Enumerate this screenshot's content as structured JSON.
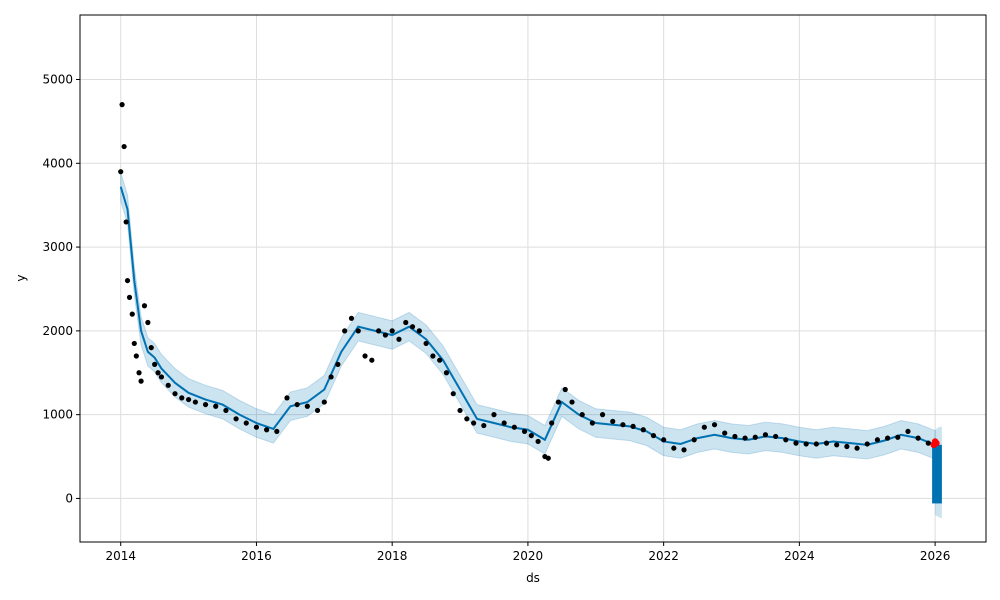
{
  "chart_data": {
    "type": "scatter",
    "title": "",
    "xlabel": "ds",
    "ylabel": "y",
    "xlim": [
      2013.4,
      2026.75
    ],
    "ylim": [
      -520,
      5770
    ],
    "x_ticks": [
      {
        "value": 2014,
        "label": "2014"
      },
      {
        "value": 2016,
        "label": "2016"
      },
      {
        "value": 2018,
        "label": "2018"
      },
      {
        "value": 2020,
        "label": "2020"
      },
      {
        "value": 2022,
        "label": "2022"
      },
      {
        "value": 2024,
        "label": "2024"
      },
      {
        "value": 2026,
        "label": "2026"
      }
    ],
    "y_ticks": [
      {
        "value": 0,
        "label": "0"
      },
      {
        "value": 1000,
        "label": "1000"
      },
      {
        "value": 2000,
        "label": "2000"
      },
      {
        "value": 3000,
        "label": "3000"
      },
      {
        "value": 4000,
        "label": "4000"
      },
      {
        "value": 5000,
        "label": "5000"
      }
    ],
    "grid": true,
    "colors": {
      "observed": "#000000",
      "forecast_line": "#0072B2",
      "uncertainty_band": "#0072B2",
      "recent_points": "#ff0000",
      "grid": "#dddddd"
    },
    "observed": {
      "x": [
        2014.0,
        2014.02,
        2014.05,
        2014.08,
        2014.1,
        2014.13,
        2014.17,
        2014.2,
        2014.23,
        2014.27,
        2014.3,
        2014.35,
        2014.4,
        2014.45,
        2014.5,
        2014.55,
        2014.6,
        2014.7,
        2014.8,
        2014.9,
        2015.0,
        2015.1,
        2015.25,
        2015.4,
        2015.55,
        2015.7,
        2015.85,
        2016.0,
        2016.15,
        2016.3,
        2016.45,
        2016.6,
        2016.75,
        2016.9,
        2017.0,
        2017.1,
        2017.2,
        2017.3,
        2017.4,
        2017.5,
        2017.6,
        2017.7,
        2017.8,
        2017.9,
        2018.0,
        2018.1,
        2018.2,
        2018.3,
        2018.4,
        2018.5,
        2018.6,
        2018.7,
        2018.8,
        2018.9,
        2019.0,
        2019.1,
        2019.2,
        2019.35,
        2019.5,
        2019.65,
        2019.8,
        2019.95,
        2020.05,
        2020.15,
        2020.25,
        2020.3,
        2020.35,
        2020.45,
        2020.55,
        2020.65,
        2020.8,
        2020.95,
        2021.1,
        2021.25,
        2021.4,
        2021.55,
        2021.7,
        2021.85,
        2022.0,
        2022.15,
        2022.3,
        2022.45,
        2022.6,
        2022.75,
        2022.9,
        2023.05,
        2023.2,
        2023.35,
        2023.5,
        2023.65,
        2023.8,
        2023.95,
        2024.1,
        2024.25,
        2024.4,
        2024.55,
        2024.7,
        2024.85,
        2025.0,
        2025.15,
        2025.3,
        2025.45,
        2025.6,
        2025.75,
        2025.9
      ],
      "y": [
        3900,
        4700,
        4200,
        3300,
        2600,
        2400,
        2200,
        1850,
        1700,
        1500,
        1400,
        2300,
        2100,
        1800,
        1600,
        1500,
        1450,
        1350,
        1250,
        1200,
        1180,
        1150,
        1120,
        1100,
        1050,
        950,
        900,
        850,
        820,
        800,
        1200,
        1120,
        1100,
        1050,
        1150,
        1450,
        1600,
        2000,
        2150,
        2000,
        1700,
        1650,
        2000,
        1950,
        2000,
        1900,
        2100,
        2050,
        2000,
        1850,
        1700,
        1650,
        1500,
        1250,
        1050,
        950,
        900,
        870,
        1000,
        900,
        850,
        800,
        750,
        680,
        500,
        480,
        900,
        1150,
        1300,
        1150,
        1000,
        900,
        1000,
        920,
        880,
        860,
        820,
        750,
        700,
        600,
        580,
        700,
        850,
        880,
        780,
        740,
        720,
        730,
        760,
        740,
        700,
        660,
        650,
        650,
        660,
        640,
        620,
        600,
        650,
        700,
        720,
        730,
        800,
        720,
        660
      ]
    },
    "forecast": {
      "x": [
        2014.0,
        2014.1,
        2014.2,
        2014.3,
        2014.4,
        2014.5,
        2014.6,
        2014.8,
        2015.0,
        2015.25,
        2015.5,
        2015.75,
        2016.0,
        2016.25,
        2016.5,
        2016.75,
        2017.0,
        2017.25,
        2017.5,
        2017.75,
        2018.0,
        2018.25,
        2018.5,
        2018.75,
        2019.0,
        2019.25,
        2019.5,
        2019.75,
        2020.0,
        2020.25,
        2020.5,
        2020.75,
        2021.0,
        2021.25,
        2021.5,
        2021.75,
        2022.0,
        2022.25,
        2022.5,
        2022.75,
        2023.0,
        2023.25,
        2023.5,
        2023.75,
        2024.0,
        2024.25,
        2024.5,
        2024.75,
        2025.0,
        2025.25,
        2025.5,
        2025.75,
        2026.0
      ],
      "yhat": [
        3720,
        3450,
        2600,
        2000,
        1750,
        1680,
        1550,
        1380,
        1260,
        1180,
        1120,
        1000,
        900,
        830,
        1100,
        1150,
        1300,
        1750,
        2050,
        2000,
        1950,
        2050,
        1900,
        1650,
        1300,
        950,
        900,
        850,
        820,
        700,
        1150,
        1000,
        900,
        880,
        860,
        800,
        680,
        650,
        720,
        760,
        720,
        700,
        740,
        720,
        680,
        650,
        680,
        660,
        640,
        690,
        760,
        720,
        640
      ],
      "lower": [
        3550,
        3280,
        2430,
        1830,
        1580,
        1510,
        1380,
        1210,
        1090,
        1010,
        950,
        830,
        730,
        660,
        930,
        980,
        1130,
        1580,
        1880,
        1830,
        1780,
        1880,
        1730,
        1480,
        1130,
        780,
        730,
        680,
        650,
        530,
        980,
        830,
        730,
        710,
        690,
        630,
        510,
        480,
        550,
        590,
        550,
        530,
        570,
        550,
        510,
        480,
        510,
        490,
        470,
        520,
        590,
        550,
        470
      ],
      "upper": [
        3890,
        3620,
        2770,
        2170,
        1920,
        1850,
        1720,
        1550,
        1430,
        1350,
        1290,
        1170,
        1070,
        1000,
        1270,
        1320,
        1470,
        1920,
        2220,
        2170,
        2120,
        2220,
        2070,
        1820,
        1470,
        1120,
        1070,
        1020,
        990,
        870,
        1320,
        1170,
        1070,
        1050,
        1030,
        970,
        850,
        820,
        890,
        930,
        890,
        870,
        910,
        890,
        850,
        820,
        850,
        830,
        810,
        860,
        930,
        890,
        810
      ],
      "future_x": [
        2026.0,
        2026.05,
        2026.1
      ],
      "future_yhat": [
        640,
        560,
        480
      ],
      "future_lower": [
        -200,
        -220,
        -240
      ],
      "future_upper": [
        820,
        850,
        860
      ]
    },
    "recent_points": {
      "x": [
        2025.98,
        2026.0,
        2026.02
      ],
      "y": [
        640,
        680,
        660
      ]
    }
  }
}
